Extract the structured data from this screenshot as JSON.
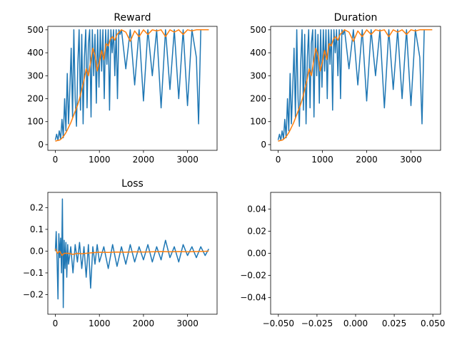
{
  "figure": {
    "background": "#ffffff"
  },
  "colors": {
    "raw": "#1f77b4",
    "smooth": "#ff7f0e"
  },
  "chart_data": [
    {
      "id": "reward",
      "type": "line",
      "title": "Reward",
      "xlabel": "",
      "ylabel": "",
      "xlim": [
        -170,
        3670
      ],
      "ylim": [
        -25,
        515
      ],
      "xticks": [
        0,
        1000,
        2000,
        3000
      ],
      "yticks": [
        0,
        100,
        200,
        300,
        400,
        500
      ],
      "xtick_labels": [
        "0",
        "1000",
        "2000",
        "3000"
      ],
      "ytick_labels": [
        "0",
        "100",
        "200",
        "300",
        "400",
        "500"
      ],
      "grid": false,
      "series": [
        {
          "color": "#1f77b4",
          "role": "raw",
          "x": [
            0,
            30,
            60,
            90,
            120,
            150,
            180,
            210,
            240,
            270,
            300,
            330,
            360,
            390,
            420,
            450,
            480,
            510,
            540,
            570,
            600,
            630,
            660,
            690,
            720,
            750,
            780,
            810,
            840,
            870,
            900,
            930,
            960,
            990,
            1020,
            1050,
            1080,
            1110,
            1140,
            1170,
            1200,
            1230,
            1260,
            1290,
            1320,
            1350,
            1380,
            1410,
            1440,
            1470,
            1500,
            1600,
            1700,
            1800,
            1900,
            2000,
            2100,
            2200,
            2300,
            2400,
            2500,
            2600,
            2700,
            2800,
            2900,
            3000,
            3100,
            3200,
            3250,
            3300,
            3400,
            3480
          ],
          "y": [
            20,
            45,
            18,
            60,
            25,
            110,
            30,
            200,
            60,
            310,
            90,
            250,
            420,
            120,
            500,
            200,
            80,
            350,
            500,
            150,
            480,
            90,
            380,
            500,
            160,
            440,
            500,
            120,
            500,
            300,
            480,
            180,
            500,
            250,
            500,
            320,
            500,
            200,
            500,
            350,
            500,
            150,
            500,
            400,
            500,
            300,
            500,
            200,
            500,
            480,
            500,
            330,
            500,
            260,
            500,
            190,
            500,
            300,
            500,
            160,
            500,
            240,
            500,
            200,
            500,
            170,
            500,
            380,
            90,
            500,
            500,
            500
          ]
        },
        {
          "color": "#ff7f0e",
          "role": "smoothed",
          "x": [
            0,
            50,
            100,
            150,
            200,
            250,
            300,
            350,
            400,
            450,
            500,
            550,
            600,
            650,
            700,
            750,
            800,
            850,
            900,
            950,
            1000,
            1050,
            1100,
            1150,
            1200,
            1250,
            1300,
            1350,
            1400,
            1450,
            1500,
            1600,
            1700,
            1800,
            1900,
            2000,
            2100,
            2200,
            2300,
            2400,
            2500,
            2600,
            2700,
            2800,
            2900,
            3000,
            3100,
            3200,
            3300,
            3400,
            3480
          ],
          "y": [
            15,
            18,
            20,
            28,
            40,
            55,
            75,
            95,
            120,
            145,
            170,
            200,
            240,
            280,
            330,
            300,
            360,
            420,
            390,
            320,
            360,
            410,
            370,
            440,
            430,
            460,
            470,
            455,
            480,
            490,
            500,
            490,
            450,
            495,
            470,
            500,
            480,
            500,
            495,
            500,
            470,
            500,
            490,
            500,
            480,
            500,
            495,
            500,
            500,
            500,
            500
          ]
        }
      ]
    },
    {
      "id": "duration",
      "type": "line",
      "title": "Duration",
      "xlabel": "",
      "ylabel": "",
      "xlim": [
        -170,
        3670
      ],
      "ylim": [
        -25,
        515
      ],
      "xticks": [
        0,
        1000,
        2000,
        3000
      ],
      "yticks": [
        0,
        100,
        200,
        300,
        400,
        500
      ],
      "xtick_labels": [
        "0",
        "1000",
        "2000",
        "3000"
      ],
      "ytick_labels": [
        "0",
        "100",
        "200",
        "300",
        "400",
        "500"
      ],
      "grid": false,
      "series": [
        {
          "color": "#1f77b4",
          "role": "raw",
          "x": [
            0,
            30,
            60,
            90,
            120,
            150,
            180,
            210,
            240,
            270,
            300,
            330,
            360,
            390,
            420,
            450,
            480,
            510,
            540,
            570,
            600,
            630,
            660,
            690,
            720,
            750,
            780,
            810,
            840,
            870,
            900,
            930,
            960,
            990,
            1020,
            1050,
            1080,
            1110,
            1140,
            1170,
            1200,
            1230,
            1260,
            1290,
            1320,
            1350,
            1380,
            1410,
            1440,
            1470,
            1500,
            1600,
            1700,
            1800,
            1900,
            2000,
            2100,
            2200,
            2300,
            2400,
            2500,
            2600,
            2700,
            2800,
            2900,
            3000,
            3100,
            3200,
            3250,
            3300,
            3400,
            3480
          ],
          "y": [
            20,
            45,
            18,
            60,
            25,
            110,
            30,
            200,
            60,
            310,
            90,
            250,
            420,
            120,
            500,
            200,
            80,
            350,
            500,
            150,
            480,
            90,
            380,
            500,
            160,
            440,
            500,
            120,
            500,
            300,
            480,
            180,
            500,
            250,
            500,
            320,
            500,
            200,
            500,
            350,
            500,
            150,
            500,
            400,
            500,
            300,
            500,
            200,
            500,
            480,
            500,
            330,
            500,
            260,
            500,
            190,
            500,
            300,
            500,
            160,
            500,
            240,
            500,
            200,
            500,
            170,
            500,
            380,
            90,
            500,
            500,
            500
          ]
        },
        {
          "color": "#ff7f0e",
          "role": "smoothed",
          "x": [
            0,
            50,
            100,
            150,
            200,
            250,
            300,
            350,
            400,
            450,
            500,
            550,
            600,
            650,
            700,
            750,
            800,
            850,
            900,
            950,
            1000,
            1050,
            1100,
            1150,
            1200,
            1250,
            1300,
            1350,
            1400,
            1450,
            1500,
            1600,
            1700,
            1800,
            1900,
            2000,
            2100,
            2200,
            2300,
            2400,
            2500,
            2600,
            2700,
            2800,
            2900,
            3000,
            3100,
            3200,
            3300,
            3400,
            3480
          ],
          "y": [
            15,
            18,
            20,
            28,
            40,
            55,
            75,
            95,
            120,
            145,
            170,
            200,
            240,
            280,
            330,
            300,
            360,
            420,
            390,
            320,
            360,
            410,
            370,
            440,
            430,
            460,
            470,
            455,
            480,
            490,
            500,
            490,
            450,
            495,
            470,
            500,
            480,
            500,
            495,
            500,
            470,
            500,
            490,
            500,
            480,
            500,
            495,
            500,
            500,
            500,
            500
          ]
        }
      ]
    },
    {
      "id": "loss",
      "type": "line",
      "title": "Loss",
      "xlabel": "",
      "ylabel": "",
      "xlim": [
        -170,
        3670
      ],
      "ylim": [
        -0.29,
        0.27
      ],
      "xticks": [
        0,
        1000,
        2000,
        3000
      ],
      "yticks": [
        -0.2,
        -0.1,
        0.0,
        0.1,
        0.2
      ],
      "xtick_labels": [
        "0",
        "1000",
        "2000",
        "3000"
      ],
      "ytick_labels": [
        "−0.2",
        "−0.1",
        "0.0",
        "0.1",
        "0.2"
      ],
      "grid": false,
      "series": [
        {
          "color": "#1f77b4",
          "role": "raw",
          "x": [
            0,
            20,
            40,
            60,
            80,
            100,
            120,
            140,
            160,
            180,
            200,
            220,
            240,
            260,
            280,
            300,
            350,
            400,
            450,
            500,
            550,
            600,
            650,
            700,
            750,
            800,
            850,
            900,
            950,
            1000,
            1100,
            1200,
            1300,
            1400,
            1500,
            1600,
            1700,
            1800,
            1900,
            2000,
            2100,
            2200,
            2300,
            2400,
            2500,
            2600,
            2700,
            2800,
            2900,
            3000,
            3100,
            3200,
            3300,
            3400,
            3480
          ],
          "y": [
            0.0,
            0.09,
            -0.05,
            -0.22,
            0.08,
            -0.03,
            0.06,
            -0.1,
            0.24,
            -0.26,
            0.05,
            -0.08,
            0.04,
            -0.12,
            0.03,
            -0.06,
            0.02,
            -0.1,
            0.03,
            -0.05,
            0.04,
            -0.08,
            0.02,
            -0.12,
            0.03,
            -0.17,
            0.02,
            -0.06,
            0.03,
            -0.05,
            0.02,
            -0.08,
            0.03,
            -0.07,
            0.02,
            -0.06,
            0.03,
            -0.05,
            0.02,
            -0.04,
            0.03,
            -0.05,
            0.02,
            -0.04,
            0.05,
            -0.03,
            0.02,
            -0.05,
            0.03,
            -0.02,
            0.02,
            -0.03,
            0.02,
            -0.02,
            0.01
          ]
        },
        {
          "color": "#ff7f0e",
          "role": "smoothed",
          "x": [
            0,
            50,
            100,
            150,
            200,
            300,
            400,
            500,
            600,
            800,
            1000,
            1200,
            1400,
            1600,
            1800,
            2000,
            2200,
            2400,
            2600,
            2800,
            3000,
            3200,
            3400,
            3480
          ],
          "y": [
            0.01,
            -0.01,
            0.0,
            -0.02,
            -0.01,
            -0.01,
            -0.015,
            -0.01,
            -0.012,
            -0.008,
            -0.005,
            -0.006,
            -0.004,
            -0.005,
            -0.003,
            -0.004,
            -0.003,
            -0.002,
            -0.003,
            -0.002,
            -0.003,
            -0.002,
            -0.001,
            0.0
          ]
        }
      ]
    },
    {
      "id": "empty",
      "type": "line",
      "title": "",
      "xlabel": "",
      "ylabel": "",
      "xlim": [
        -0.055,
        0.055
      ],
      "ylim": [
        -0.055,
        0.055
      ],
      "xticks": [
        -0.05,
        -0.025,
        0.0,
        0.025,
        0.05
      ],
      "yticks": [
        -0.04,
        -0.02,
        0.0,
        0.02,
        0.04
      ],
      "xtick_labels": [
        "−0.050",
        "−0.025",
        "0.000",
        "0.025",
        "0.050"
      ],
      "ytick_labels": [
        "−0.04",
        "−0.02",
        "0.00",
        "0.02",
        "0.04"
      ],
      "grid": false,
      "series": []
    }
  ]
}
